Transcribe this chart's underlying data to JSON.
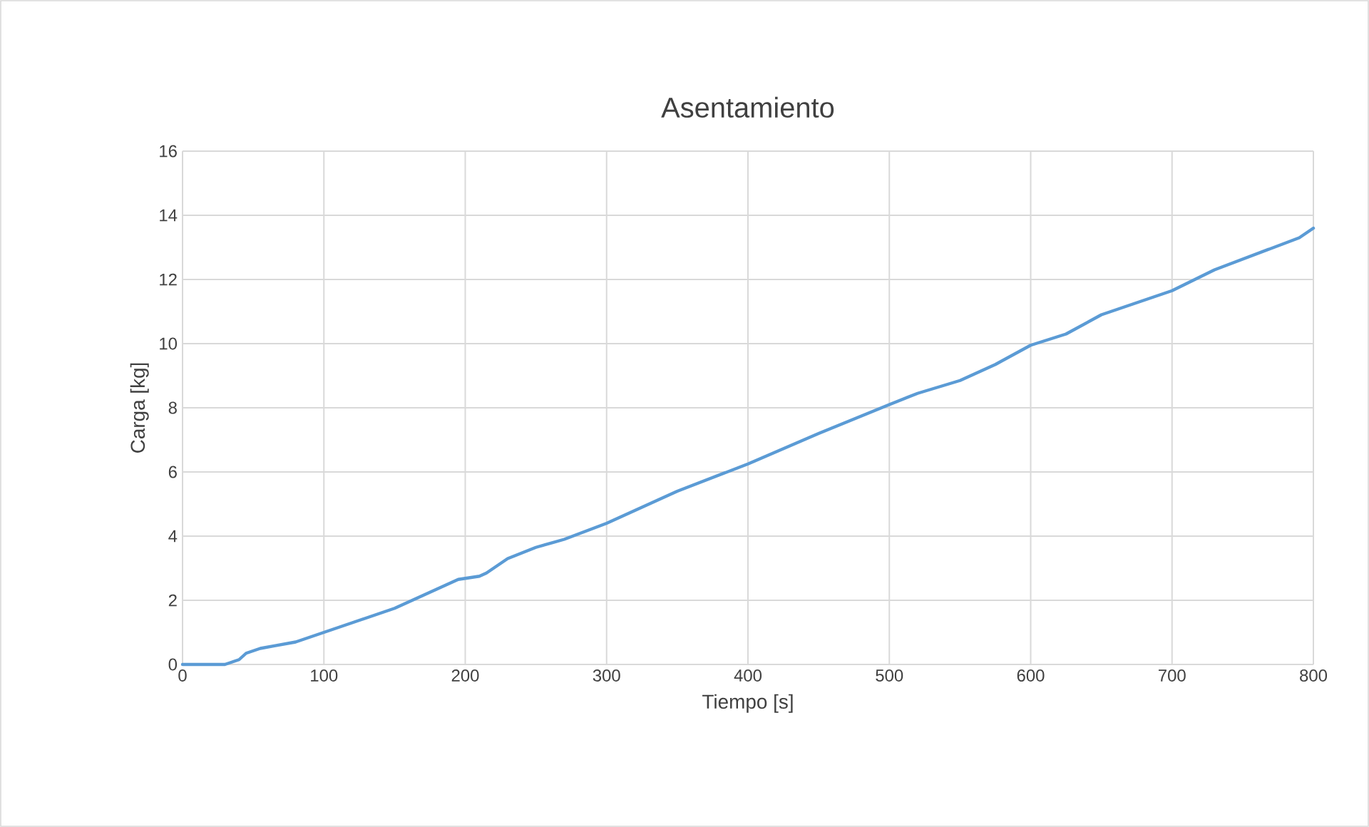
{
  "chart_data": {
    "type": "line",
    "title": "Asentamiento",
    "xlabel": "Tiempo [s]",
    "ylabel": "Carga [kg]",
    "xlim": [
      0,
      800
    ],
    "ylim": [
      0,
      16
    ],
    "xticks": [
      0,
      100,
      200,
      300,
      400,
      500,
      600,
      700,
      800
    ],
    "yticks": [
      0,
      2,
      4,
      6,
      8,
      10,
      12,
      14,
      16
    ],
    "grid": true,
    "series": [
      {
        "color": "#5b9bd5",
        "x": [
          0,
          30,
          40,
          45,
          55,
          65,
          80,
          90,
          100,
          120,
          150,
          180,
          195,
          210,
          215,
          230,
          250,
          270,
          300,
          350,
          400,
          450,
          500,
          520,
          550,
          575,
          600,
          625,
          650,
          700,
          730,
          760,
          790,
          800
        ],
        "values": [
          0,
          0,
          0.15,
          0.35,
          0.5,
          0.58,
          0.7,
          0.85,
          1.0,
          1.3,
          1.75,
          2.35,
          2.65,
          2.75,
          2.85,
          3.3,
          3.65,
          3.9,
          4.4,
          5.4,
          6.25,
          7.2,
          8.1,
          8.45,
          8.85,
          9.35,
          9.95,
          10.3,
          10.9,
          11.65,
          12.3,
          12.8,
          13.3,
          13.6
        ]
      }
    ]
  }
}
